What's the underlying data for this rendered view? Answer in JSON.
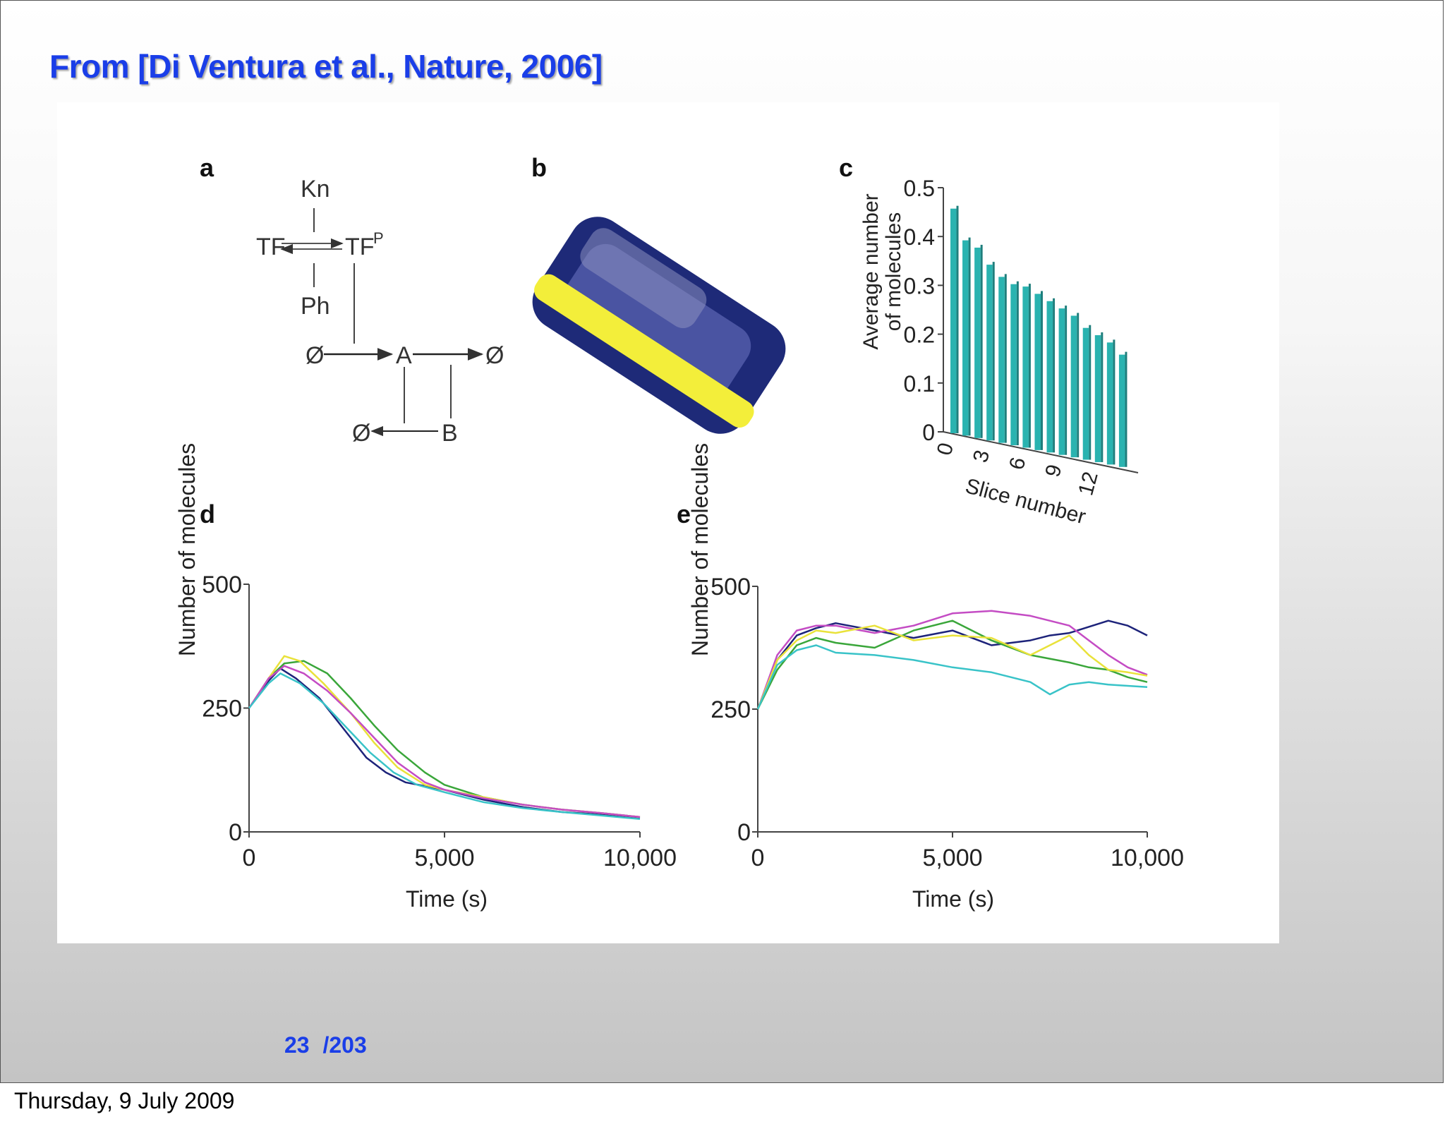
{
  "slide": {
    "citation": "From [Di Ventura et al., Nature, 2006]",
    "page_current": "23",
    "page_total": "/203",
    "footer_date": "Thursday, 9 July 2009"
  },
  "figure": {
    "panel_labels": {
      "a": "a",
      "b": "b",
      "c": "c",
      "d": "d",
      "e": "e"
    },
    "network": {
      "nodes": {
        "kn": "Kn",
        "tf": "TF",
        "tfp": "TF",
        "tfp_sup": "P",
        "ph": "Ph",
        "a": "A",
        "b": "B",
        "null1": "Ø",
        "null2": "Ø",
        "null3": "Ø"
      }
    },
    "cell_colors": {
      "outer": "#1e2a78",
      "inner": "#5a63b0",
      "band": "#f3ee3a"
    }
  },
  "chart_data": [
    {
      "panel": "c",
      "type": "bar",
      "xlabel": "Slice number",
      "ylabel_line1": "Average number",
      "ylabel_line2": "of molecules",
      "x_tick_labels": [
        "0",
        "3",
        "6",
        "9",
        "12"
      ],
      "y_tick_labels": [
        "0",
        "0.1",
        "0.2",
        "0.3",
        "0.4",
        "0.5"
      ],
      "ylim": [
        0,
        0.5
      ],
      "categories": [
        0,
        1,
        2,
        3,
        4,
        5,
        6,
        7,
        8,
        9,
        10,
        11,
        12,
        13,
        14
      ],
      "values": [
        0.46,
        0.4,
        0.39,
        0.36,
        0.34,
        0.33,
        0.33,
        0.32,
        0.31,
        0.3,
        0.29,
        0.27,
        0.26,
        0.25,
        0.23
      ],
      "bar_color": "#2ab3b0"
    },
    {
      "panel": "d",
      "type": "line",
      "xlabel": "Time (s)",
      "ylabel": "Number of molecules",
      "x_tick_labels": [
        "0",
        "5,000",
        "10,000"
      ],
      "y_tick_labels": [
        "0",
        "250",
        "500"
      ],
      "xlim": [
        0,
        10000
      ],
      "ylim": [
        0,
        500
      ],
      "series": [
        {
          "color": "#1d237a",
          "x": [
            0,
            500,
            800,
            1200,
            1800,
            2500,
            3000,
            3500,
            4000,
            5000,
            6000,
            7000,
            8000,
            9000,
            10000
          ],
          "y": [
            250,
            305,
            330,
            310,
            270,
            200,
            150,
            120,
            100,
            85,
            65,
            50,
            40,
            35,
            28
          ]
        },
        {
          "color": "#3aa63a",
          "x": [
            0,
            500,
            900,
            1400,
            2000,
            2600,
            3200,
            3800,
            4500,
            5000,
            6000,
            7000,
            8000,
            9000,
            10000
          ],
          "y": [
            250,
            310,
            340,
            345,
            320,
            270,
            215,
            165,
            120,
            95,
            70,
            55,
            45,
            38,
            30
          ]
        },
        {
          "color": "#e9e23a",
          "x": [
            0,
            500,
            900,
            1300,
            1900,
            2600,
            3200,
            3800,
            4500,
            5000,
            6000,
            7000,
            8000,
            9000,
            10000
          ],
          "y": [
            250,
            310,
            355,
            345,
            300,
            240,
            180,
            130,
            95,
            85,
            70,
            55,
            45,
            38,
            30
          ]
        },
        {
          "color": "#c44cc4",
          "x": [
            0,
            500,
            900,
            1400,
            2000,
            2600,
            3200,
            3800,
            4500,
            5000,
            6000,
            7000,
            8000,
            9000,
            10000
          ],
          "y": [
            250,
            310,
            335,
            320,
            285,
            240,
            190,
            140,
            100,
            85,
            68,
            55,
            45,
            38,
            30
          ]
        },
        {
          "color": "#39c3c8",
          "x": [
            0,
            500,
            800,
            1300,
            1900,
            2500,
            3100,
            3700,
            4300,
            5000,
            6000,
            7000,
            8000,
            9000,
            10000
          ],
          "y": [
            250,
            300,
            320,
            300,
            260,
            210,
            160,
            120,
            95,
            80,
            60,
            48,
            40,
            33,
            26
          ]
        }
      ]
    },
    {
      "panel": "e",
      "type": "line",
      "xlabel": "Time (s)",
      "ylabel": "Number of molecules",
      "x_tick_labels": [
        "0",
        "5,000",
        "10,000"
      ],
      "y_tick_labels": [
        "0",
        "250",
        "500"
      ],
      "xlim": [
        0,
        10000
      ],
      "ylim": [
        0,
        500
      ],
      "series": [
        {
          "color": "#1d237a",
          "x": [
            0,
            500,
            1000,
            1500,
            2000,
            3000,
            4000,
            5000,
            6000,
            7000,
            7500,
            8000,
            9000,
            9500,
            10000
          ],
          "y": [
            250,
            350,
            400,
            415,
            425,
            410,
            395,
            410,
            380,
            390,
            400,
            405,
            430,
            420,
            400
          ]
        },
        {
          "color": "#c44cc4",
          "x": [
            0,
            500,
            1000,
            1500,
            2000,
            3000,
            4000,
            5000,
            6000,
            7000,
            8000,
            8500,
            9000,
            9500,
            10000
          ],
          "y": [
            250,
            360,
            410,
            420,
            420,
            405,
            420,
            445,
            450,
            440,
            420,
            390,
            360,
            335,
            320
          ]
        },
        {
          "color": "#3aa63a",
          "x": [
            0,
            500,
            1000,
            1500,
            2000,
            3000,
            4000,
            5000,
            6000,
            7000,
            8000,
            8500,
            9000,
            9500,
            10000
          ],
          "y": [
            250,
            330,
            380,
            395,
            385,
            375,
            410,
            430,
            390,
            360,
            345,
            335,
            330,
            315,
            305
          ]
        },
        {
          "color": "#e9e23a",
          "x": [
            0,
            500,
            1000,
            1500,
            2000,
            3000,
            4000,
            5000,
            6000,
            7000,
            8000,
            8500,
            9000,
            9500,
            10000
          ],
          "y": [
            250,
            350,
            390,
            410,
            405,
            420,
            390,
            400,
            395,
            360,
            400,
            360,
            330,
            325,
            318
          ]
        },
        {
          "color": "#39c3c8",
          "x": [
            0,
            500,
            1000,
            1500,
            2000,
            3000,
            4000,
            5000,
            6000,
            7000,
            7500,
            8000,
            8500,
            9000,
            10000
          ],
          "y": [
            250,
            340,
            370,
            380,
            365,
            360,
            350,
            335,
            325,
            305,
            280,
            300,
            305,
            300,
            295
          ]
        }
      ]
    }
  ]
}
